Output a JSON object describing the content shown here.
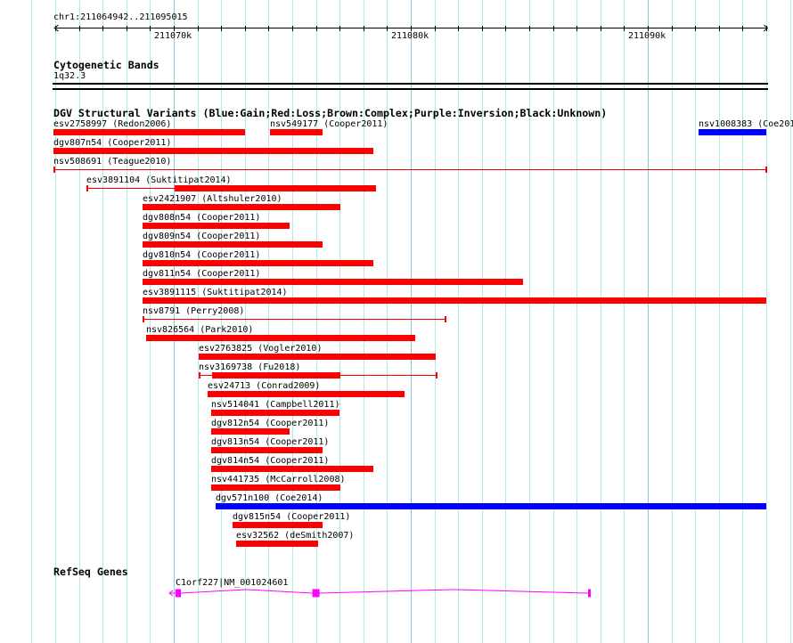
{
  "ruler": {
    "region_label": "chr1:211064942..211095015",
    "region_start": 211064942,
    "region_end": 211095015,
    "major_ticks": [
      {
        "pos": 211070000,
        "label": "211070k"
      },
      {
        "pos": 211080000,
        "label": "211080k"
      },
      {
        "pos": 211090000,
        "label": "211090k"
      }
    ]
  },
  "cytoband_track": {
    "title": "Cytogenetic Bands",
    "band": "1q32.3"
  },
  "dgv_track": {
    "title": "DGV Structural Variants (Blue:Gain;Red:Loss;Brown:Complex;Purple:Inversion;Black:Unknown)",
    "colors": {
      "gain": "#0000ff",
      "loss": "#ff0000"
    },
    "features": [
      {
        "label": "esv2758997 (Redon2006)",
        "row": 0,
        "type": "loss",
        "start": 211064942,
        "end": 211073008
      },
      {
        "label": "nsv549177 (Cooper2011)",
        "row": 0,
        "type": "loss",
        "start": 211074060,
        "end": 211076278
      },
      {
        "label": "nsv1008383 (Coe201",
        "row": 0,
        "type": "gain",
        "start": 211092143,
        "end": 211095015
      },
      {
        "label": "dgv807n54 (Cooper2011)",
        "row": 1,
        "type": "loss",
        "start": 211064942,
        "end": 211078421
      },
      {
        "label": "nsv508691 (Teague2010)",
        "row": 2,
        "type": "loss",
        "start": 211064942,
        "end": 211095015,
        "thin": true
      },
      {
        "label": "esv3891104 (Suktitipat2014)",
        "row": 3,
        "type": "loss",
        "start": 211066316,
        "end": 211078496,
        "thick_start": 211070038,
        "thick_end": 211078496
      },
      {
        "label": "esv2421907 (Altshuler2010)",
        "row": 4,
        "type": "loss",
        "start": 211068684,
        "end": 211077030
      },
      {
        "label": "dgv808n54 (Cooper2011)",
        "row": 5,
        "type": "loss",
        "start": 211068684,
        "end": 211074887
      },
      {
        "label": "dgv809n54 (Cooper2011)",
        "row": 6,
        "type": "loss",
        "start": 211068684,
        "end": 211076278
      },
      {
        "label": "dgv810n54 (Cooper2011)",
        "row": 7,
        "type": "loss",
        "start": 211068684,
        "end": 211078421
      },
      {
        "label": "dgv811n54 (Cooper2011)",
        "row": 8,
        "type": "loss",
        "start": 211068684,
        "end": 211084737
      },
      {
        "label": "esv3891115 (Suktitipat2014)",
        "row": 9,
        "type": "loss",
        "start": 211068684,
        "end": 211095015
      },
      {
        "label": "nsv8791 (Perry2008)",
        "row": 10,
        "type": "loss",
        "start": 211068684,
        "end": 211081466,
        "thin": true
      },
      {
        "label": "nsv826564 (Park2010)",
        "row": 11,
        "type": "loss",
        "start": 211068835,
        "end": 211080188
      },
      {
        "label": "esv2763825 (Vogler2010)",
        "row": 12,
        "type": "loss",
        "start": 211071053,
        "end": 211081053
      },
      {
        "label": "nsv3169738 (Fu2018)",
        "row": 13,
        "type": "loss",
        "start": 211071053,
        "end": 211081090,
        "thick_start": 211071617,
        "thick_end": 211077030
      },
      {
        "label": "esv24713 (Conrad2009)",
        "row": 14,
        "type": "loss",
        "start": 211071429,
        "end": 211079737
      },
      {
        "label": "nsv514041 (Campbell2011)",
        "row": 15,
        "type": "loss",
        "start": 211071579,
        "end": 211076992
      },
      {
        "label": "dgv812n54 (Cooper2011)",
        "row": 16,
        "type": "loss",
        "start": 211071579,
        "end": 211074887
      },
      {
        "label": "dgv813n54 (Cooper2011)",
        "row": 17,
        "type": "loss",
        "start": 211071579,
        "end": 211076278
      },
      {
        "label": "dgv814n54 (Cooper2011)",
        "row": 18,
        "type": "loss",
        "start": 211071579,
        "end": 211078421
      },
      {
        "label": "nsv441735 (McCarroll2008)",
        "row": 19,
        "type": "loss",
        "start": 211071579,
        "end": 211077030
      },
      {
        "label": "dgv571n100 (Coe2014)",
        "row": 20,
        "type": "gain",
        "start": 211071767,
        "end": 211095015
      },
      {
        "label": "dgv815n54 (Cooper2011)",
        "row": 21,
        "type": "loss",
        "start": 211072481,
        "end": 211076278
      },
      {
        "label": "esv32562 (deSmith2007)",
        "row": 22,
        "type": "loss",
        "start": 211072632,
        "end": 211076090
      }
    ]
  },
  "refseq_track": {
    "title": "RefSeq Genes",
    "gene_label": "C1orf227|NM_001024601",
    "color": "#ff00ff",
    "strand": "-",
    "start": 211070075,
    "end": 211087594,
    "exons": [
      [
        211070075,
        211070301
      ],
      [
        211075850,
        211076150
      ],
      [
        211087481,
        211087594
      ]
    ]
  }
}
